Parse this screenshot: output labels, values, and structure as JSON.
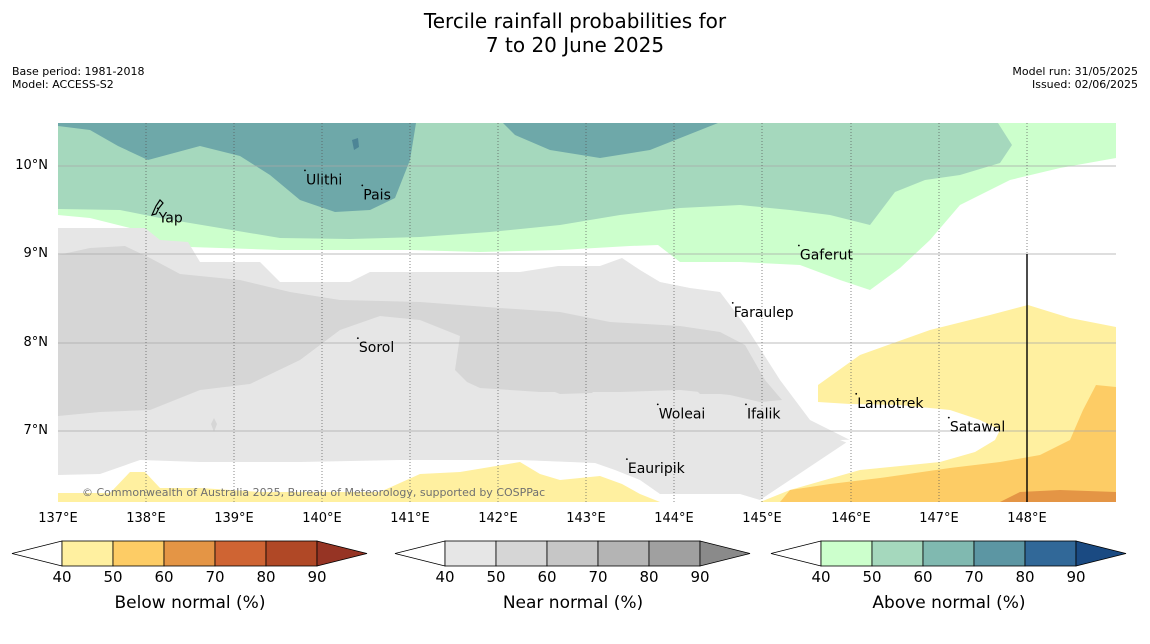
{
  "header": {
    "title_line1": "Tercile rainfall probabilities for",
    "title_line2": "7 to 20 June 2025",
    "base_period": "Base period: 1981-2018",
    "model": "Model: ACCESS-S2",
    "model_run": "Model run: 31/05/2025",
    "issued": "Issued: 02/06/2025"
  },
  "map": {
    "lat_labels": [
      "10°N",
      "9°N",
      "8°N",
      "7°N"
    ],
    "lon_labels": [
      "137°E",
      "138°E",
      "139°E",
      "140°E",
      "141°E",
      "142°E",
      "143°E",
      "144°E",
      "145°E",
      "146°E",
      "147°E",
      "148°E"
    ],
    "places": [
      {
        "name": "Ulithi",
        "lon": 139.8,
        "lat": 9.95
      },
      {
        "name": "Pais",
        "lon": 140.45,
        "lat": 9.78
      },
      {
        "name": "Yap",
        "lon": 138.13,
        "lat": 9.52
      },
      {
        "name": "Gaferut",
        "lon": 145.4,
        "lat": 9.1
      },
      {
        "name": "Faraulep",
        "lon": 144.65,
        "lat": 8.45
      },
      {
        "name": "Sorol",
        "lon": 140.4,
        "lat": 8.05
      },
      {
        "name": "Lamotrek",
        "lon": 146.05,
        "lat": 7.42
      },
      {
        "name": "Woleai",
        "lon": 143.8,
        "lat": 7.3
      },
      {
        "name": "Ifalik",
        "lon": 144.8,
        "lat": 7.3
      },
      {
        "name": "Satawal",
        "lon": 147.1,
        "lat": 7.15
      },
      {
        "name": "Eauripik",
        "lon": 143.45,
        "lat": 6.68
      }
    ],
    "copyright": "© Commonwealth of Australia 2025, Bureau of Meteorology, supported by COSPPac"
  },
  "legends": {
    "ticks": [
      "40",
      "50",
      "60",
      "70",
      "80",
      "90"
    ],
    "below": {
      "label": "Below normal (%)",
      "colors": [
        "#fff0a0",
        "#fdcc65",
        "#e49545",
        "#cf6433",
        "#b04826",
        "#963424"
      ]
    },
    "near": {
      "label": "Near normal (%)",
      "colors": [
        "#e6e6e6",
        "#d6d6d6",
        "#c6c6c6",
        "#b4b4b4",
        "#a0a0a0",
        "#8a8a8a"
      ]
    },
    "above": {
      "label": "Above normal (%)",
      "colors": [
        "#ccffcc",
        "#a5d8bd",
        "#80b9b0",
        "#5c96a3",
        "#316898",
        "#1a4a82"
      ]
    }
  }
}
